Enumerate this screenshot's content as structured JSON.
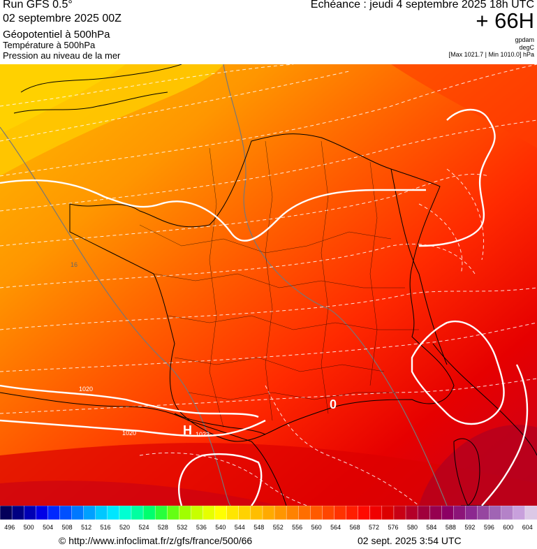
{
  "header": {
    "run": "Run GFS 0.5°",
    "run_date": "02 septembre 2025 00Z",
    "field_main": "Géopotentiel à 500hPa",
    "field_temp": "Température à 500hPa",
    "field_pressure": "Pression au niveau de la mer",
    "echeance": "Echéance : jeudi 4 septembre 2025 18h UTC",
    "offset": "+ 66H",
    "unit_geopot": "gpdam",
    "unit_temp": "degC",
    "maxmin": "[Max 1021.7 | Min 1010.0] hPa"
  },
  "map": {
    "isobar_labels": [
      "1020",
      "1020",
      "1022",
      "16"
    ],
    "high_marker": "H",
    "low_marker": "0",
    "colors": {
      "isobar": "#ffffff",
      "isotherm": "#777777",
      "borders": "#000000"
    }
  },
  "colorbar": {
    "labels": [
      "496",
      "500",
      "504",
      "508",
      "512",
      "516",
      "520",
      "524",
      "528",
      "532",
      "536",
      "540",
      "544",
      "548",
      "552",
      "556",
      "560",
      "564",
      "568",
      "572",
      "576",
      "580",
      "584",
      "588",
      "592",
      "596",
      "600",
      "604"
    ],
    "colors": [
      "#04005a",
      "#000082",
      "#0000b4",
      "#0000e6",
      "#0028ff",
      "#0050ff",
      "#0078ff",
      "#00a0ff",
      "#00c8ff",
      "#00e6ff",
      "#00ffd2",
      "#00ffa0",
      "#00ff6e",
      "#28ff3c",
      "#64ff14",
      "#a0ff00",
      "#c8ff00",
      "#e6ff00",
      "#ffff00",
      "#ffe600",
      "#ffd200",
      "#ffbe00",
      "#ffaa00",
      "#ff9600",
      "#ff8200",
      "#ff6e00",
      "#ff5a00",
      "#ff4600",
      "#ff3200",
      "#ff1e00",
      "#ff0a00",
      "#f00000",
      "#dc0000",
      "#c80014",
      "#b40028",
      "#a0003c",
      "#960050",
      "#8c0064",
      "#8c1478",
      "#8c2890",
      "#9646a0",
      "#a064b4",
      "#b482c8",
      "#c8a0dc",
      "#dcc8e6"
    ]
  },
  "footer": {
    "url": "© http://www.infoclimat.fr/z/gfs/france/500/66",
    "timestamp": "02 sept. 2025  3:54 UTC"
  }
}
